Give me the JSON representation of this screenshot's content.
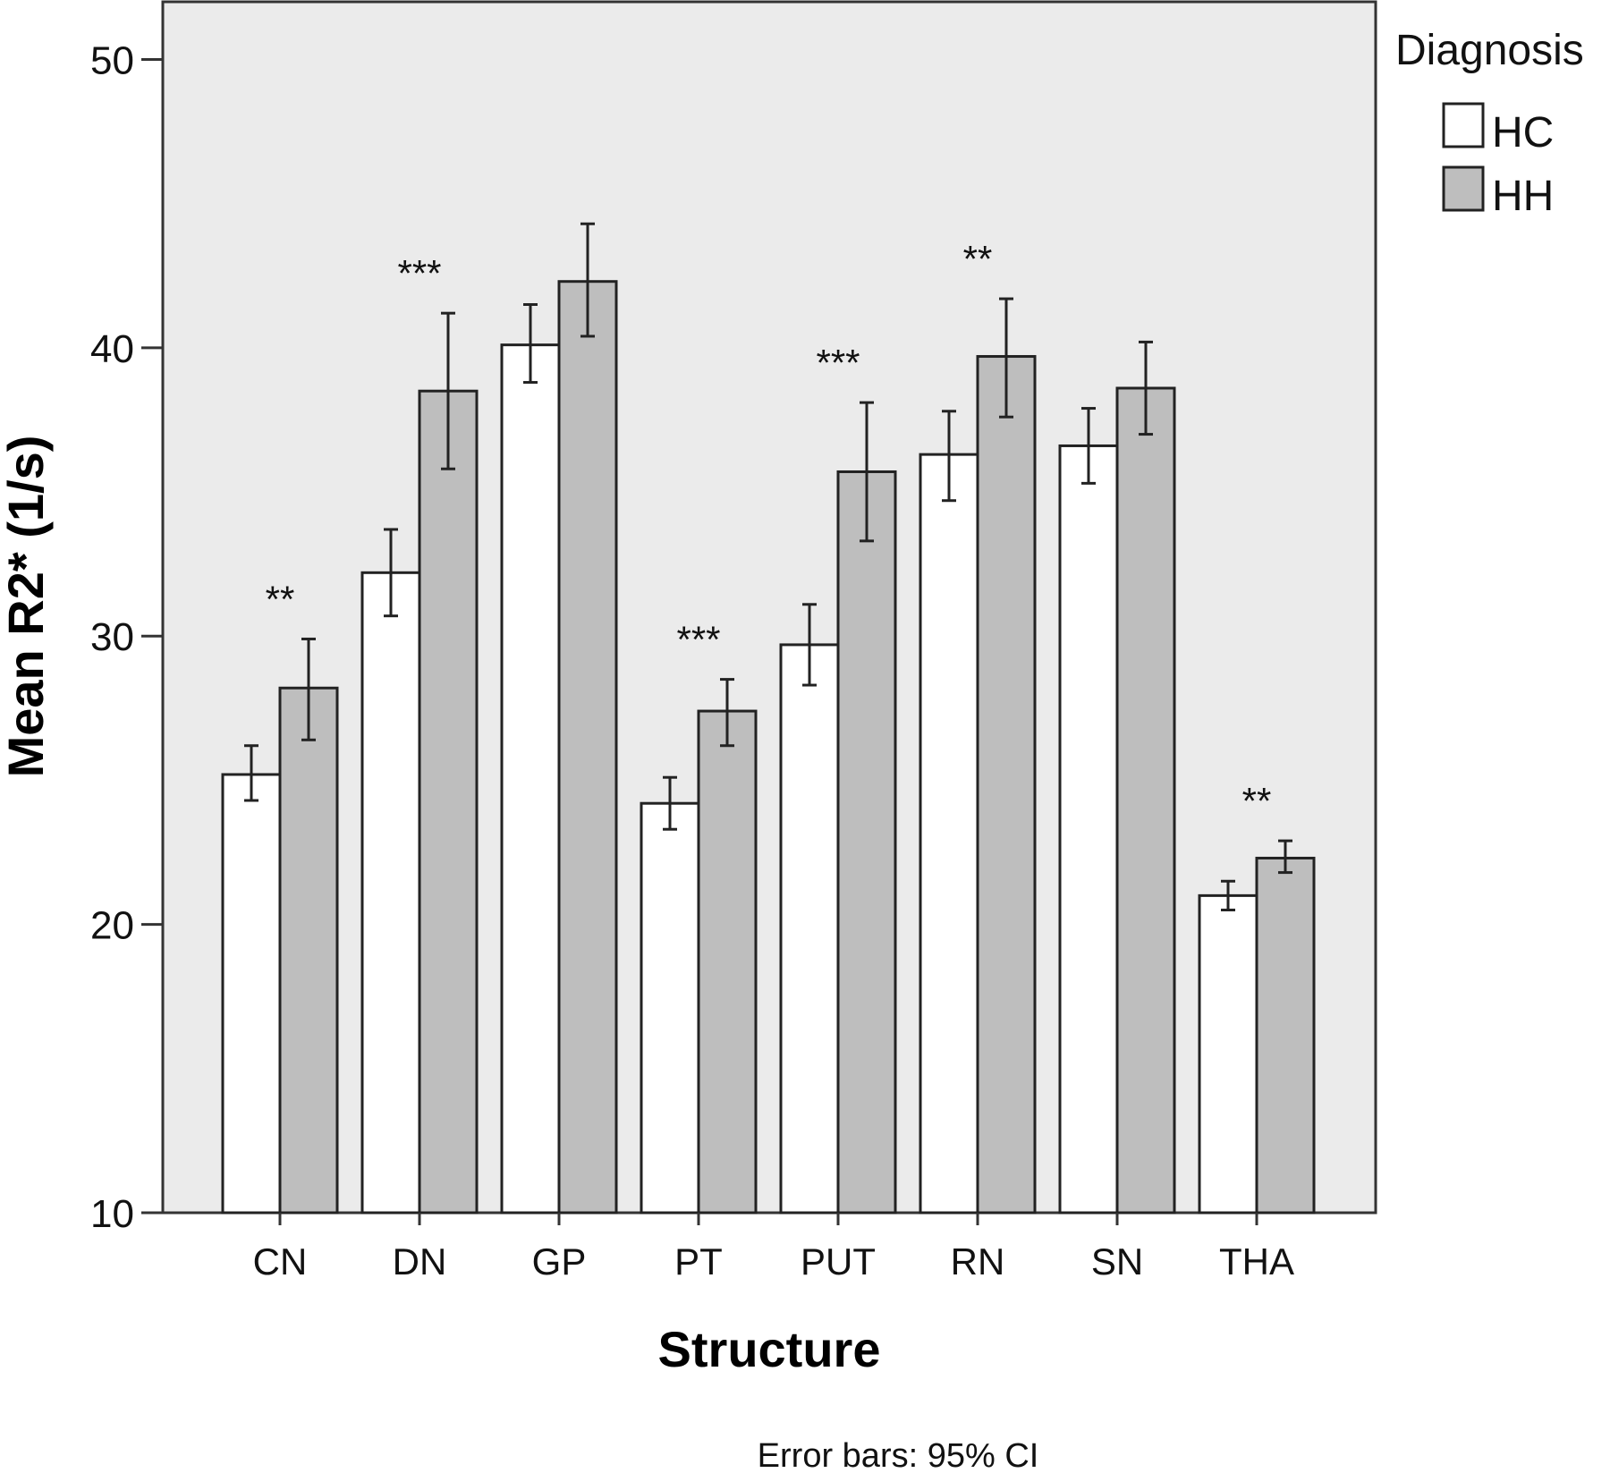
{
  "chart_data": {
    "type": "bar",
    "title": "",
    "xlabel": "Structure",
    "ylabel": "Mean R2* (1/s)",
    "ylim": [
      10,
      52
    ],
    "yticks": [
      10,
      20,
      30,
      40,
      50
    ],
    "grid": false,
    "categories": [
      "CN",
      "DN",
      "GP",
      "PT",
      "PUT",
      "RN",
      "SN",
      "THA"
    ],
    "legend": {
      "title": "Diagnosis",
      "placement": "top-right outside"
    },
    "series": [
      {
        "name": "HC",
        "color": "#ffffff",
        "values": [
          25.2,
          32.2,
          40.1,
          24.2,
          29.7,
          36.3,
          36.6,
          21.0
        ],
        "ci_low": [
          24.3,
          30.7,
          38.8,
          23.3,
          28.3,
          34.7,
          35.3,
          20.5
        ],
        "ci_high": [
          26.2,
          33.7,
          41.5,
          25.1,
          31.1,
          37.8,
          37.9,
          21.5
        ]
      },
      {
        "name": "HH",
        "color": "#bebebe",
        "values": [
          28.2,
          38.5,
          42.3,
          27.4,
          35.7,
          39.7,
          38.6,
          22.3
        ],
        "ci_low": [
          26.4,
          35.8,
          40.4,
          26.2,
          33.3,
          37.6,
          37.0,
          21.8
        ],
        "ci_high": [
          29.9,
          41.2,
          44.3,
          28.5,
          38.1,
          41.7,
          40.2,
          22.9
        ]
      }
    ],
    "significance": [
      "**",
      "***",
      "",
      "***",
      "***",
      "**",
      "",
      "**"
    ],
    "note": "Error bars: 95% CI"
  },
  "colors": {
    "plot_background": "#ebebeb",
    "frame": "#333333"
  }
}
